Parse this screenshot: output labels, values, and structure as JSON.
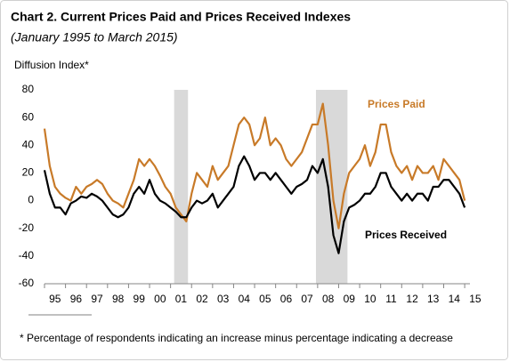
{
  "chart_data": {
    "type": "line",
    "title": "Chart 2. Current Prices Paid and Prices Received Indexes",
    "subtitle": "(January 1995 to March 2015)",
    "y_label": "Diffusion Index*",
    "footnote": "* Percentage of respondents indicating an increase minus percentage indicating a decrease",
    "x": [
      1995,
      1995.25,
      1995.5,
      1995.75,
      1996,
      1996.25,
      1996.5,
      1996.75,
      1997,
      1997.25,
      1997.5,
      1997.75,
      1998,
      1998.25,
      1998.5,
      1998.75,
      1999,
      1999.25,
      1999.5,
      1999.75,
      2000,
      2000.25,
      2000.5,
      2000.75,
      2001,
      2001.25,
      2001.5,
      2001.75,
      2002,
      2002.25,
      2002.5,
      2002.75,
      2003,
      2003.25,
      2003.5,
      2003.75,
      2004,
      2004.25,
      2004.5,
      2004.75,
      2005,
      2005.25,
      2005.5,
      2005.75,
      2006,
      2006.25,
      2006.5,
      2006.75,
      2007,
      2007.25,
      2007.5,
      2007.75,
      2008,
      2008.25,
      2008.5,
      2008.75,
      2009,
      2009.25,
      2009.5,
      2009.75,
      2010,
      2010.25,
      2010.5,
      2010.75,
      2011,
      2011.25,
      2011.5,
      2011.75,
      2012,
      2012.25,
      2012.5,
      2012.75,
      2013,
      2013.25,
      2013.5,
      2013.75,
      2014,
      2014.25,
      2014.5,
      2014.75,
      2015
    ],
    "series": [
      {
        "name": "Prices Paid",
        "color": "#c87a28",
        "values": [
          52,
          25,
          10,
          5,
          2,
          0,
          10,
          5,
          10,
          12,
          15,
          12,
          5,
          0,
          -2,
          -5,
          5,
          15,
          30,
          25,
          30,
          25,
          18,
          10,
          5,
          -5,
          -10,
          -15,
          5,
          20,
          15,
          10,
          25,
          15,
          20,
          25,
          40,
          55,
          60,
          55,
          40,
          45,
          60,
          40,
          45,
          40,
          30,
          25,
          30,
          35,
          45,
          55,
          55,
          70,
          40,
          0,
          -20,
          5,
          20,
          25,
          30,
          40,
          25,
          35,
          55,
          55,
          35,
          25,
          20,
          25,
          15,
          25,
          20,
          20,
          25,
          15,
          30,
          25,
          20,
          15,
          0
        ]
      },
      {
        "name": "Prices Received",
        "color": "#000000",
        "values": [
          22,
          5,
          -5,
          -5,
          -10,
          -2,
          0,
          3,
          2,
          5,
          3,
          0,
          -5,
          -10,
          -12,
          -10,
          -5,
          5,
          10,
          5,
          15,
          5,
          0,
          -2,
          -5,
          -8,
          -12,
          -12,
          -5,
          0,
          -2,
          0,
          5,
          -5,
          0,
          5,
          10,
          25,
          32,
          25,
          15,
          20,
          20,
          15,
          20,
          15,
          10,
          5,
          10,
          12,
          15,
          25,
          20,
          30,
          10,
          -25,
          -38,
          -15,
          -5,
          -3,
          0,
          5,
          5,
          10,
          20,
          20,
          10,
          5,
          0,
          5,
          0,
          5,
          5,
          0,
          10,
          10,
          15,
          15,
          10,
          5,
          -5
        ]
      }
    ],
    "shaded_regions": [
      [
        2001.17,
        2001.83
      ],
      [
        2007.92,
        2009.42
      ]
    ],
    "shade_color": "#d9d9d9",
    "xlim": [
      1995,
      2015.25
    ],
    "xticks": [
      {
        "value": 1995,
        "label": "95"
      },
      {
        "value": 1996,
        "label": "96"
      },
      {
        "value": 1997,
        "label": "97"
      },
      {
        "value": 1998,
        "label": "98"
      },
      {
        "value": 1999,
        "label": "99"
      },
      {
        "value": 2000,
        "label": "00"
      },
      {
        "value": 2001,
        "label": "01"
      },
      {
        "value": 2002,
        "label": "02"
      },
      {
        "value": 2003,
        "label": "03"
      },
      {
        "value": 2004,
        "label": "04"
      },
      {
        "value": 2005,
        "label": "05"
      },
      {
        "value": 2006,
        "label": "06"
      },
      {
        "value": 2007,
        "label": "07"
      },
      {
        "value": 2008,
        "label": "08"
      },
      {
        "value": 2009,
        "label": "09"
      },
      {
        "value": 2010,
        "label": "10"
      },
      {
        "value": 2011,
        "label": "11"
      },
      {
        "value": 2012,
        "label": "12"
      },
      {
        "value": 2013,
        "label": "13"
      },
      {
        "value": 2014,
        "label": "14"
      },
      {
        "value": 2015,
        "label": "15"
      }
    ],
    "ylim": [
      -60,
      80
    ],
    "yticks": [
      -60,
      -40,
      -20,
      0,
      20,
      40,
      60,
      80
    ]
  }
}
